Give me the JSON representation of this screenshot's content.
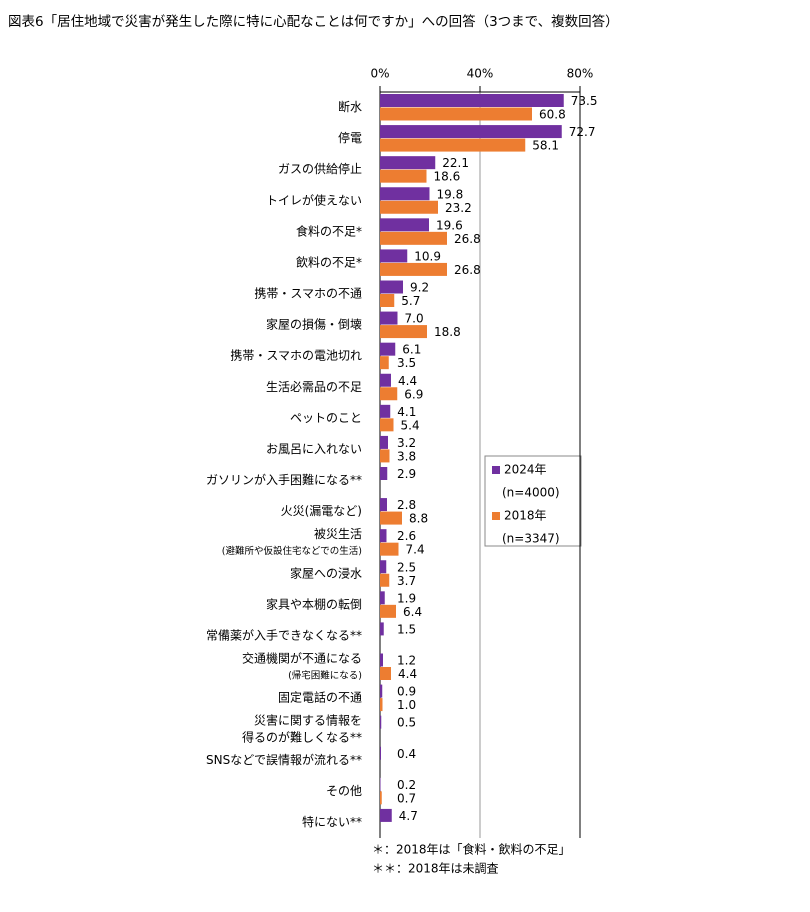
{
  "chart_data": {
    "type": "bar",
    "orientation": "horizontal",
    "title": "図表6「居住地域で災害が発生した際に特に心配なことは何ですか」への回答（3つまで、複数回答）",
    "categories": [
      "断水",
      "停電",
      "ガスの供給停止",
      "トイレが使えない",
      "食料の不足*",
      "飲料の不足*",
      "携帯・スマホの不通",
      "家屋の損傷・倒壊",
      "携帯・スマホの電池切れ",
      "生活必需品の不足",
      "ペットのこと",
      "お風呂に入れない",
      "ガソリンが入手困難になる**",
      "火災(漏電など)",
      [
        "被災生活",
        "(避難所や仮設住宅などでの生活)"
      ],
      "家屋への浸水",
      "家具や本棚の転倒",
      "常備薬が入手できなくなる**",
      [
        "交通機関が不通になる",
        "(帰宅困難になる)"
      ],
      "固定電話の不通",
      [
        "災害に関する情報を",
        "得るのが難しくなる**"
      ],
      "SNSなどで誤情報が流れる**",
      "その他",
      "特にない**"
    ],
    "series": [
      {
        "name": "2024年",
        "n_label": "(n=4000)",
        "color": "#7030a0",
        "values": [
          73.5,
          72.7,
          22.1,
          19.8,
          19.6,
          10.9,
          9.2,
          7.0,
          6.1,
          4.4,
          4.1,
          3.2,
          2.9,
          2.8,
          2.6,
          2.5,
          1.9,
          1.5,
          1.2,
          0.9,
          0.5,
          0.4,
          0.2,
          4.7
        ],
        "value_labels": [
          "73.5",
          "72.7",
          "22.1",
          "19.8",
          "19.6",
          "10.9",
          "9.2",
          "7.0",
          "6.1",
          "4.4",
          "4.1",
          "3.2",
          "2.9",
          "2.8",
          "2.6",
          "2.5",
          "1.9",
          "1.5",
          "1.2",
          "0.9",
          "0.5",
          "0.4",
          "0.2",
          "4.7"
        ]
      },
      {
        "name": "2018年",
        "n_label": "(n=3347)",
        "color": "#ed7d31",
        "values": [
          60.8,
          58.1,
          18.6,
          23.2,
          26.8,
          26.8,
          5.7,
          18.8,
          3.5,
          6.9,
          5.4,
          3.8,
          null,
          8.8,
          7.4,
          3.7,
          6.4,
          null,
          4.4,
          1.0,
          null,
          null,
          0.7,
          null
        ],
        "value_labels": [
          "60.8",
          "58.1",
          "18.6",
          "23.2",
          "26.8",
          "26.8",
          "5.7",
          "18.8",
          "3.5",
          "6.9",
          "5.4",
          "3.8",
          null,
          "8.8",
          "7.4",
          "3.7",
          "6.4",
          null,
          "4.4",
          "1.0",
          null,
          null,
          "0.7",
          null
        ]
      }
    ],
    "xlim": [
      0,
      80
    ],
    "xticks": [
      {
        "value": 0,
        "label": "0%"
      },
      {
        "value": 40,
        "label": "40%"
      },
      {
        "value": 80,
        "label": "80%"
      }
    ],
    "grid": true,
    "footnotes": [
      "＊：2018年は「食料・飲料の不足」",
      "＊＊：2018年は未調査"
    ]
  }
}
